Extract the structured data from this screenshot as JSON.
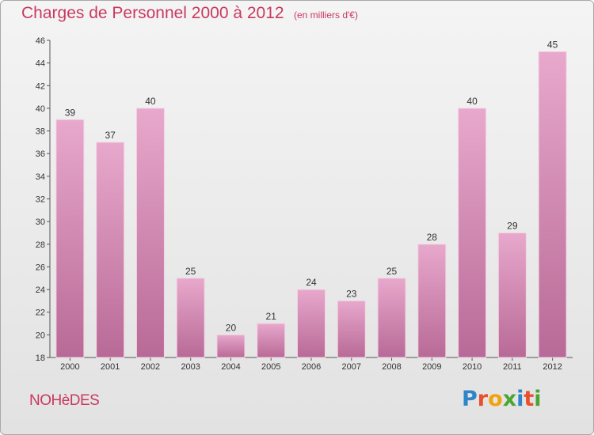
{
  "header": {
    "title": "Charges de Personnel 2000 à 2012",
    "subtitle": "(en milliers d'€)"
  },
  "footer": {
    "commune": "NOHèDES",
    "logo_letters": [
      {
        "char": "P",
        "color": "#2e86c9"
      },
      {
        "char": "r",
        "color": "#e8502d"
      },
      {
        "char": "o",
        "color": "#f2a20c"
      },
      {
        "char": "x",
        "color": "#4aa632"
      },
      {
        "char": "i",
        "color": "#2e86c9"
      },
      {
        "char": "t",
        "color": "#e8502d"
      },
      {
        "char": "i",
        "color": "#4aa632"
      }
    ]
  },
  "colors": {
    "accent": "#c9395f",
    "bar_top": "#e8a8cc",
    "bar_bottom": "#b86a96"
  },
  "chart_data": {
    "type": "bar",
    "categories": [
      "2000",
      "2001",
      "2002",
      "2003",
      "2004",
      "2005",
      "2006",
      "2007",
      "2008",
      "2009",
      "2010",
      "2011",
      "2012"
    ],
    "values": [
      39,
      37,
      40,
      25,
      20,
      21,
      24,
      23,
      25,
      28,
      40,
      29,
      45
    ],
    "title": "Charges de Personnel 2000 à 2012",
    "xlabel": "",
    "ylabel": "",
    "ylim": [
      18,
      46
    ],
    "yticks": [
      18,
      20,
      22,
      24,
      26,
      28,
      30,
      32,
      34,
      36,
      38,
      40,
      42,
      44,
      46
    ],
    "grid": false,
    "legend": "none"
  }
}
